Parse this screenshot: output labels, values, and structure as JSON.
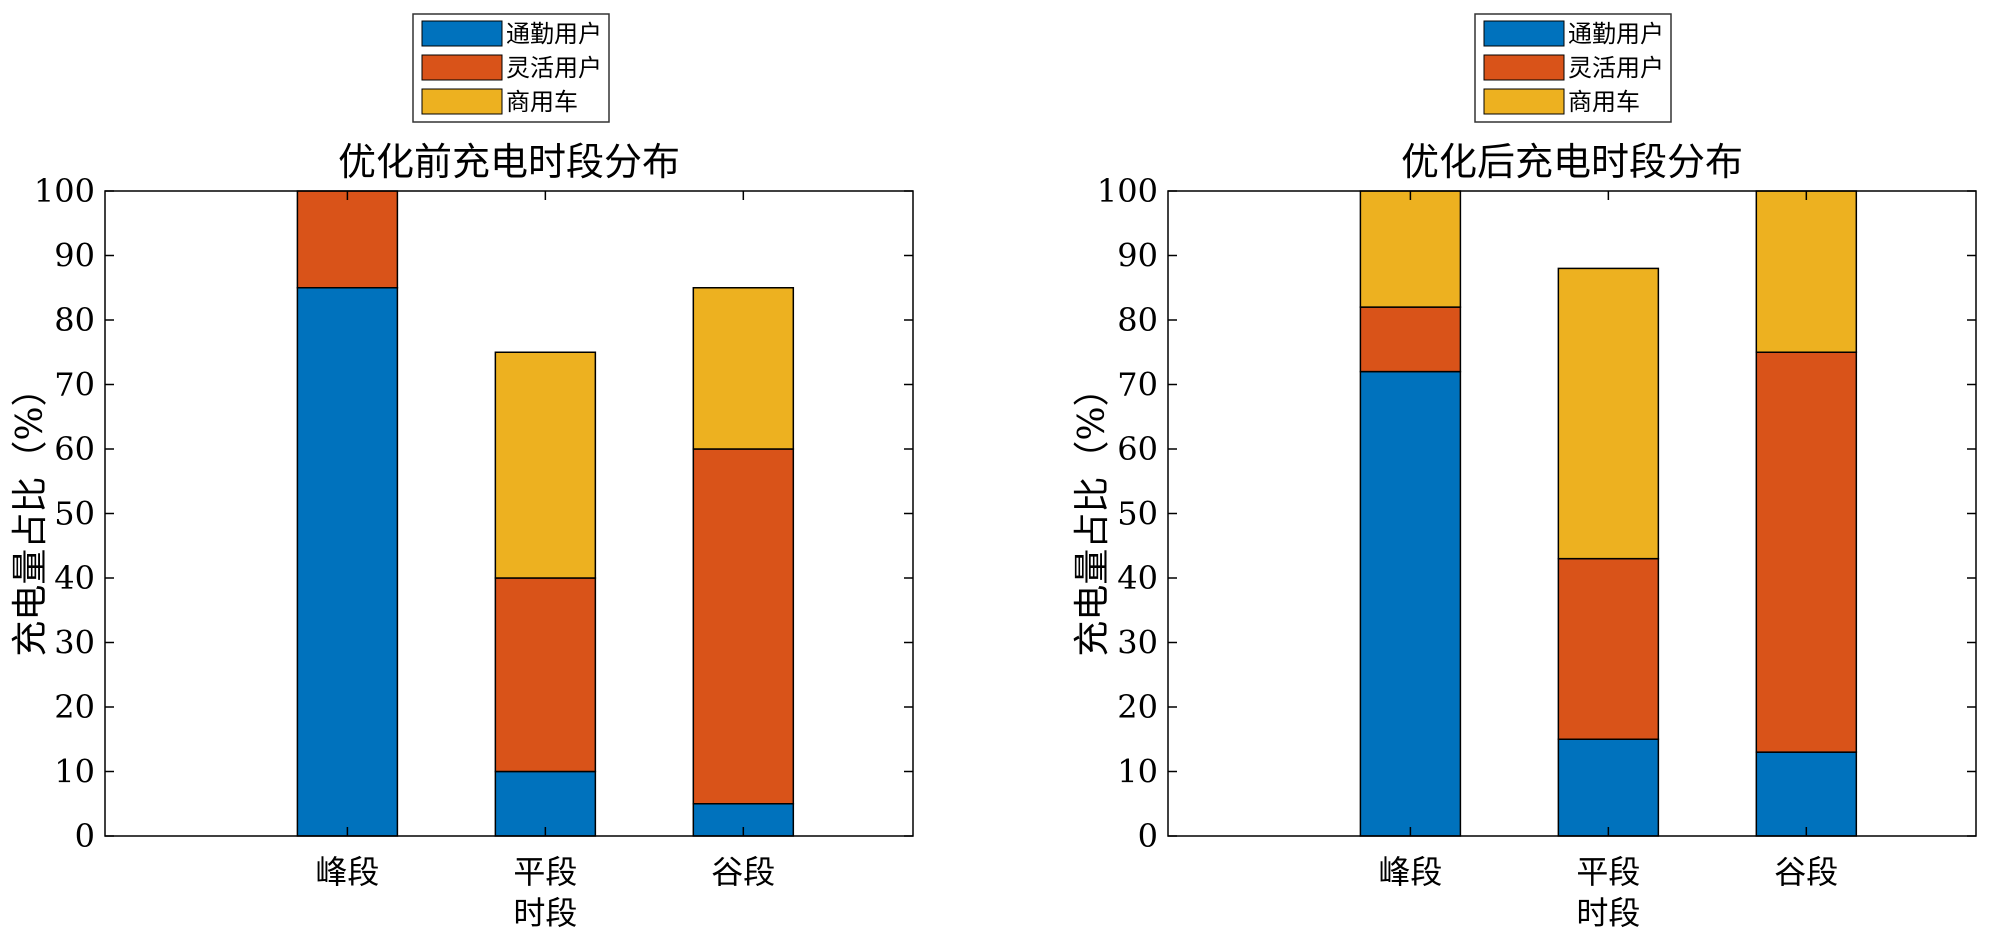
{
  "colors": {
    "通勤用户": "#0072BD",
    "灵活用户": "#D95319",
    "商用车": "#EDB120",
    "axis": "#000000",
    "background": "#FFFFFF"
  },
  "chart_data": [
    {
      "type": "bar",
      "stacked": true,
      "title": "优化前充电时段分布",
      "xlabel": "时段",
      "ylabel": "充电量占比（%）",
      "categories": [
        "峰段",
        "平段",
        "谷段"
      ],
      "ylim": [
        0,
        100
      ],
      "yticks": [
        "0",
        "10",
        "20",
        "30",
        "40",
        "50",
        "60",
        "70",
        "80",
        "90",
        "100"
      ],
      "grid": false,
      "legend_position": "top",
      "series": [
        {
          "name": "通勤用户",
          "values": [
            85,
            10,
            5
          ]
        },
        {
          "name": "灵活用户",
          "values": [
            15,
            30,
            55
          ]
        },
        {
          "name": "商用车",
          "values": [
            0,
            35,
            25
          ]
        }
      ]
    },
    {
      "type": "bar",
      "stacked": true,
      "title": "优化后充电时段分布",
      "xlabel": "时段",
      "ylabel": "充电量占比（%）",
      "categories": [
        "峰段",
        "平段",
        "谷段"
      ],
      "ylim": [
        0,
        100
      ],
      "yticks": [
        "0",
        "10",
        "20",
        "30",
        "40",
        "50",
        "60",
        "70",
        "80",
        "90",
        "100"
      ],
      "grid": false,
      "legend_position": "top",
      "series": [
        {
          "name": "通勤用户",
          "values": [
            72,
            15,
            13
          ]
        },
        {
          "name": "灵活用户",
          "values": [
            10,
            28,
            62
          ]
        },
        {
          "name": "商用车",
          "values": [
            18,
            45,
            25
          ]
        }
      ]
    }
  ]
}
